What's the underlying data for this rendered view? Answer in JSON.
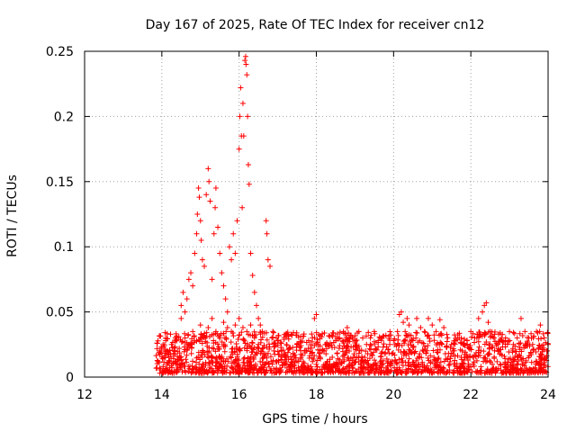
{
  "chart_data": {
    "type": "scatter",
    "title": "Day 167 of 2025, Rate Of TEC Index for receiver cn12",
    "xlabel": "GPS time / hours",
    "ylabel": "ROTI / TECUs",
    "xlim": [
      12,
      24
    ],
    "ylim": [
      0,
      0.25
    ],
    "xticks": [
      12,
      14,
      16,
      18,
      20,
      22,
      24
    ],
    "xtick_labels": [
      "12",
      "14",
      "16",
      "18",
      "20",
      "22",
      "24"
    ],
    "yticks": [
      0,
      0.05,
      0.1,
      0.15,
      0.2,
      0.25
    ],
    "ytick_labels": [
      "0",
      "0.05",
      "0.1",
      "0.15",
      "0.2",
      "0.25"
    ],
    "grid": true,
    "marker": "+",
    "color": "#ff0000",
    "series": [
      {
        "name": "ROTI",
        "points": [
          [
            13.9,
            0.012
          ],
          [
            13.95,
            0.018
          ],
          [
            14.0,
            0.022
          ],
          [
            14.05,
            0.015
          ],
          [
            14.1,
            0.028
          ],
          [
            14.15,
            0.02
          ],
          [
            14.2,
            0.012
          ],
          [
            14.25,
            0.025
          ],
          [
            14.3,
            0.018
          ],
          [
            14.35,
            0.03
          ],
          [
            14.4,
            0.016
          ],
          [
            14.45,
            0.022
          ],
          [
            14.5,
            0.045
          ],
          [
            14.5,
            0.055
          ],
          [
            14.55,
            0.065
          ],
          [
            14.6,
            0.05
          ],
          [
            14.65,
            0.06
          ],
          [
            14.7,
            0.075
          ],
          [
            14.75,
            0.08
          ],
          [
            14.8,
            0.07
          ],
          [
            14.85,
            0.095
          ],
          [
            14.9,
            0.11
          ],
          [
            14.92,
            0.125
          ],
          [
            14.95,
            0.145
          ],
          [
            14.97,
            0.138
          ],
          [
            15.0,
            0.12
          ],
          [
            15.02,
            0.105
          ],
          [
            15.05,
            0.09
          ],
          [
            15.1,
            0.085
          ],
          [
            15.15,
            0.14
          ],
          [
            15.2,
            0.16
          ],
          [
            15.22,
            0.15
          ],
          [
            15.25,
            0.135
          ],
          [
            15.3,
            0.075
          ],
          [
            15.35,
            0.11
          ],
          [
            15.38,
            0.13
          ],
          [
            15.4,
            0.145
          ],
          [
            15.45,
            0.115
          ],
          [
            15.5,
            0.095
          ],
          [
            15.55,
            0.08
          ],
          [
            15.6,
            0.07
          ],
          [
            15.65,
            0.06
          ],
          [
            15.7,
            0.05
          ],
          [
            15.75,
            0.1
          ],
          [
            15.8,
            0.09
          ],
          [
            15.85,
            0.11
          ],
          [
            15.9,
            0.095
          ],
          [
            15.95,
            0.12
          ],
          [
            16.0,
            0.175
          ],
          [
            16.02,
            0.2
          ],
          [
            16.04,
            0.222
          ],
          [
            16.06,
            0.185
          ],
          [
            16.08,
            0.13
          ],
          [
            16.1,
            0.21
          ],
          [
            16.12,
            0.185
          ],
          [
            16.15,
            0.243
          ],
          [
            16.17,
            0.246
          ],
          [
            16.18,
            0.24
          ],
          [
            16.2,
            0.232
          ],
          [
            16.22,
            0.2
          ],
          [
            16.24,
            0.163
          ],
          [
            16.26,
            0.148
          ],
          [
            16.3,
            0.095
          ],
          [
            16.35,
            0.078
          ],
          [
            16.4,
            0.065
          ],
          [
            16.45,
            0.055
          ],
          [
            16.5,
            0.045
          ],
          [
            16.55,
            0.04
          ],
          [
            16.6,
            0.035
          ],
          [
            16.7,
            0.12
          ],
          [
            16.72,
            0.11
          ],
          [
            16.75,
            0.09
          ],
          [
            16.8,
            0.085
          ],
          [
            16.85,
            0.03
          ],
          [
            16.9,
            0.025
          ],
          [
            17.0,
            0.028
          ],
          [
            14.6,
            0.03
          ],
          [
            14.7,
            0.025
          ],
          [
            14.8,
            0.035
          ],
          [
            14.9,
            0.028
          ],
          [
            15.0,
            0.04
          ],
          [
            15.1,
            0.032
          ],
          [
            15.2,
            0.038
          ],
          [
            15.3,
            0.045
          ],
          [
            15.4,
            0.035
          ],
          [
            15.5,
            0.03
          ],
          [
            15.6,
            0.042
          ],
          [
            15.7,
            0.038
          ],
          [
            15.8,
            0.035
          ],
          [
            15.9,
            0.04
          ],
          [
            16.0,
            0.045
          ],
          [
            16.1,
            0.038
          ],
          [
            16.2,
            0.035
          ],
          [
            16.3,
            0.04
          ],
          [
            16.4,
            0.03
          ],
          [
            16.5,
            0.025
          ],
          [
            17.1,
            0.02
          ],
          [
            17.2,
            0.015
          ],
          [
            17.3,
            0.022
          ],
          [
            17.4,
            0.018
          ],
          [
            17.5,
            0.025
          ],
          [
            17.6,
            0.015
          ],
          [
            17.7,
            0.02
          ],
          [
            17.8,
            0.028
          ],
          [
            17.9,
            0.03
          ],
          [
            17.95,
            0.045
          ],
          [
            18.0,
            0.048
          ],
          [
            18.05,
            0.025
          ],
          [
            18.1,
            0.015
          ],
          [
            18.2,
            0.02
          ],
          [
            18.3,
            0.025
          ],
          [
            18.4,
            0.032
          ],
          [
            18.5,
            0.028
          ],
          [
            18.6,
            0.03
          ],
          [
            18.7,
            0.035
          ],
          [
            18.8,
            0.038
          ],
          [
            18.9,
            0.032
          ],
          [
            19.0,
            0.028
          ],
          [
            19.1,
            0.035
          ],
          [
            19.2,
            0.03
          ],
          [
            19.3,
            0.025
          ],
          [
            19.4,
            0.03
          ],
          [
            19.5,
            0.035
          ],
          [
            19.6,
            0.028
          ],
          [
            19.7,
            0.03
          ],
          [
            19.8,
            0.032
          ],
          [
            19.9,
            0.025
          ],
          [
            20.0,
            0.028
          ],
          [
            20.1,
            0.035
          ],
          [
            20.15,
            0.048
          ],
          [
            20.2,
            0.05
          ],
          [
            20.25,
            0.042
          ],
          [
            20.3,
            0.035
          ],
          [
            20.35,
            0.045
          ],
          [
            20.4,
            0.04
          ],
          [
            20.45,
            0.032
          ],
          [
            20.5,
            0.028
          ],
          [
            20.6,
            0.045
          ],
          [
            20.7,
            0.038
          ],
          [
            20.8,
            0.035
          ],
          [
            20.9,
            0.045
          ],
          [
            21.0,
            0.04
          ],
          [
            21.1,
            0.035
          ],
          [
            21.2,
            0.044
          ],
          [
            21.3,
            0.038
          ],
          [
            21.4,
            0.03
          ],
          [
            21.5,
            0.025
          ],
          [
            21.6,
            0.028
          ],
          [
            21.7,
            0.03
          ],
          [
            21.8,
            0.025
          ],
          [
            21.9,
            0.028
          ],
          [
            22.0,
            0.035
          ],
          [
            22.1,
            0.03
          ],
          [
            22.2,
            0.045
          ],
          [
            22.3,
            0.05
          ],
          [
            22.35,
            0.055
          ],
          [
            22.4,
            0.057
          ],
          [
            22.45,
            0.042
          ],
          [
            22.5,
            0.035
          ],
          [
            22.6,
            0.03
          ],
          [
            22.7,
            0.025
          ],
          [
            22.8,
            0.028
          ],
          [
            22.9,
            0.03
          ],
          [
            23.0,
            0.035
          ],
          [
            23.1,
            0.025
          ],
          [
            23.2,
            0.03
          ],
          [
            23.3,
            0.045
          ],
          [
            23.4,
            0.035
          ],
          [
            23.5,
            0.03
          ],
          [
            23.6,
            0.025
          ],
          [
            23.7,
            0.035
          ],
          [
            23.8,
            0.04
          ],
          [
            23.9,
            0.03
          ],
          [
            24.0,
            0.025
          ]
        ],
        "baseline_band": {
          "x_range": [
            13.85,
            24.0
          ],
          "y_range": [
            0.003,
            0.035
          ],
          "note": "dense noise band of ROTI values across the full observation period"
        }
      }
    ]
  }
}
